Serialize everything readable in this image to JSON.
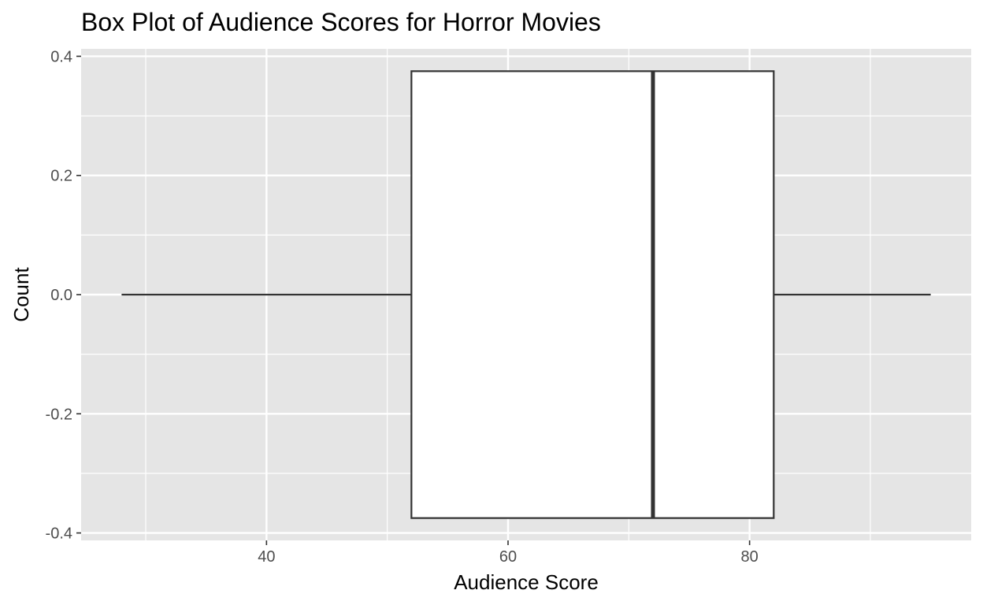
{
  "chart_data": {
    "type": "box",
    "title": "Box Plot of Audience Scores for Horror Movies",
    "xlabel": "Audience Score",
    "ylabel": "Count",
    "xlim": [
      24.65,
      98.35
    ],
    "ylim": [
      -0.4125,
      0.4125
    ],
    "x_ticks": [
      40,
      60,
      80
    ],
    "y_ticks": [
      -0.4,
      -0.2,
      0.0,
      0.2,
      0.4
    ],
    "x_tick_labels": [
      "40",
      "60",
      "80"
    ],
    "y_tick_labels": [
      "-0.4",
      "-0.2",
      "0.0",
      "0.2",
      "0.4"
    ],
    "grid": true,
    "box": {
      "min": 28,
      "q1": 52,
      "median": 72,
      "q3": 82,
      "max": 95,
      "y_center": 0.0,
      "half_width": 0.375
    },
    "colors": {
      "panel_background": "#e5e5e5",
      "grid": "#ffffff",
      "box_fill": "#ffffff",
      "box_stroke": "#333333",
      "tick_text": "#4d4d4d",
      "tick_mark": "#333333"
    }
  }
}
